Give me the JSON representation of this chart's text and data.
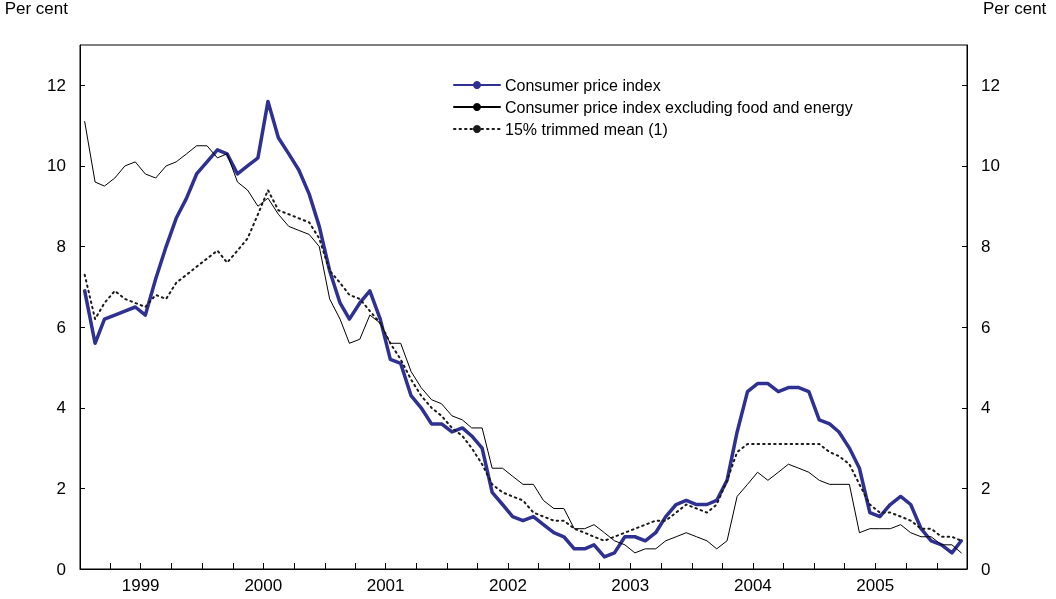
{
  "chart_data": {
    "type": "line",
    "ylabel": "Per cent",
    "y2label": "Per cent",
    "x": [
      "1999-01-15",
      "1999-02-15",
      "1999-03-15",
      "1999-04-15",
      "1999-05-15",
      "1999-06-15",
      "1999-07-15",
      "1999-08-15",
      "1999-09-15",
      "1999-10-15",
      "1999-11-15",
      "1999-12-15",
      "2000-01-15",
      "2000-02-15",
      "2000-03-15",
      "2000-04-15",
      "2000-05-15",
      "2000-06-15",
      "2000-07-15",
      "2000-08-15",
      "2000-09-15",
      "2000-10-15",
      "2000-11-15",
      "2000-12-15",
      "2001-01-15",
      "2001-02-15",
      "2001-03-15",
      "2001-04-15",
      "2001-05-15",
      "2001-06-15",
      "2001-07-15",
      "2001-08-15",
      "2001-09-15",
      "2001-10-15",
      "2001-11-15",
      "2001-12-15",
      "2002-01-15",
      "2002-02-15",
      "2002-03-15",
      "2002-04-15",
      "2002-05-15",
      "2002-06-15",
      "2002-07-15",
      "2002-08-15",
      "2002-09-15",
      "2002-10-15",
      "2002-11-15",
      "2002-12-15",
      "2003-01-15",
      "2003-02-15",
      "2003-03-15",
      "2003-04-15",
      "2003-05-15",
      "2003-06-15",
      "2003-07-15",
      "2003-08-15",
      "2003-09-15",
      "2003-10-15",
      "2003-11-15",
      "2003-12-15",
      "2004-01-15",
      "2004-02-15",
      "2004-03-15",
      "2004-04-15",
      "2004-05-15",
      "2004-06-15",
      "2004-07-15",
      "2004-08-15",
      "2004-09-15",
      "2004-10-15",
      "2004-11-15",
      "2004-12-15",
      "2005-01-15",
      "2005-02-15",
      "2005-03-15",
      "2005-04-15",
      "2005-05-15",
      "2005-06-15",
      "2005-07-15",
      "2005-08-15",
      "2005-09-15",
      "2005-10-15",
      "2005-11-15",
      "2005-12-15",
      "2006-01-15",
      "2006-02-15",
      "2006-03-15"
    ],
    "series": [
      {
        "name": "Consumer price index",
        "color": "#2e3192",
        "line_style": "solid",
        "values": [
          6.9,
          5.6,
          6.2,
          6.3,
          6.4,
          6.5,
          6.3,
          7.2,
          8.0,
          8.7,
          9.2,
          9.8,
          10.1,
          10.4,
          10.3,
          9.8,
          10.0,
          10.2,
          11.6,
          10.7,
          10.3,
          9.9,
          9.3,
          8.5,
          7.4,
          6.6,
          6.2,
          6.6,
          6.9,
          6.2,
          5.2,
          5.1,
          4.3,
          4.0,
          3.6,
          3.6,
          3.4,
          3.5,
          3.3,
          3.0,
          1.9,
          1.6,
          1.3,
          1.2,
          1.3,
          1.1,
          0.9,
          0.8,
          0.5,
          0.5,
          0.6,
          0.3,
          0.4,
          0.8,
          0.8,
          0.7,
          0.9,
          1.3,
          1.6,
          1.7,
          1.6,
          1.6,
          1.7,
          2.2,
          3.4,
          4.4,
          4.6,
          4.6,
          4.4,
          4.5,
          4.5,
          4.4,
          3.7,
          3.6,
          3.4,
          3.0,
          2.5,
          1.4,
          1.3,
          1.6,
          1.8,
          1.6,
          1.0,
          0.7,
          0.6,
          0.4,
          0.7
        ]
      },
      {
        "name": "Consumer price index excluding food and energy",
        "color": "#000000",
        "line_style": "solid",
        "values": [
          11.1,
          9.6,
          9.5,
          9.7,
          10.0,
          10.1,
          9.8,
          9.7,
          10.0,
          10.1,
          10.3,
          10.5,
          10.5,
          10.2,
          10.3,
          9.6,
          9.4,
          9.0,
          9.2,
          8.8,
          8.5,
          8.4,
          8.3,
          8.0,
          6.7,
          6.2,
          5.6,
          5.7,
          6.3,
          6.1,
          5.6,
          5.6,
          4.9,
          4.5,
          4.2,
          4.1,
          3.8,
          3.7,
          3.5,
          3.5,
          2.5,
          2.5,
          2.3,
          2.1,
          2.1,
          1.7,
          1.5,
          1.5,
          1.0,
          1.0,
          1.1,
          0.9,
          0.7,
          0.6,
          0.4,
          0.5,
          0.5,
          0.7,
          0.8,
          0.9,
          0.8,
          0.7,
          0.5,
          0.7,
          1.8,
          2.1,
          2.4,
          2.2,
          2.4,
          2.6,
          2.5,
          2.4,
          2.2,
          2.1,
          2.1,
          2.1,
          0.9,
          1.0,
          1.0,
          1.0,
          1.1,
          0.9,
          0.8,
          0.8,
          0.6,
          0.6,
          0.4
        ]
      },
      {
        "name": "15% trimmed mean (1)",
        "color": "#1a1a1a",
        "line_style": "dotted",
        "values": [
          7.3,
          6.2,
          6.6,
          6.9,
          6.7,
          6.6,
          6.5,
          6.8,
          6.7,
          7.1,
          7.3,
          7.5,
          7.7,
          7.9,
          7.6,
          7.9,
          8.2,
          8.8,
          9.4,
          8.9,
          8.8,
          8.7,
          8.6,
          8.2,
          7.4,
          7.1,
          6.8,
          6.7,
          6.4,
          6.1,
          5.6,
          5.2,
          4.7,
          4.3,
          4.0,
          3.8,
          3.5,
          3.3,
          3.0,
          2.6,
          2.1,
          1.9,
          1.8,
          1.7,
          1.4,
          1.3,
          1.2,
          1.2,
          1.0,
          0.9,
          0.8,
          0.7,
          0.8,
          0.9,
          1.0,
          1.1,
          1.2,
          1.2,
          1.4,
          1.6,
          1.5,
          1.4,
          1.6,
          2.2,
          2.9,
          3.1,
          3.1,
          3.1,
          3.1,
          3.1,
          3.1,
          3.1,
          3.1,
          2.9,
          2.8,
          2.6,
          2.1,
          1.6,
          1.4,
          1.4,
          1.3,
          1.2,
          1.0,
          1.0,
          0.8,
          0.8,
          0.7
        ]
      }
    ],
    "ylim": [
      0,
      13
    ],
    "yticks": [
      0,
      2,
      4,
      6,
      8,
      10,
      12
    ],
    "y2lim": [
      0,
      13
    ],
    "y2ticks": [
      0,
      2,
      4,
      6,
      8,
      10,
      12
    ],
    "xlim": [
      "1999-01-01",
      "2006-04-01"
    ],
    "xticks": [
      {
        "value": "1999-01-01",
        "label": null
      },
      {
        "value": "1999-04-01",
        "label": null
      },
      {
        "value": "1999-07-01",
        "label": "1999"
      },
      {
        "value": "1999-10-01",
        "label": null
      },
      {
        "value": "2000-01-01",
        "label": null
      },
      {
        "value": "2000-04-01",
        "label": null
      },
      {
        "value": "2000-07-01",
        "label": "2000"
      },
      {
        "value": "2000-10-01",
        "label": null
      },
      {
        "value": "2001-01-01",
        "label": null
      },
      {
        "value": "2001-04-01",
        "label": null
      },
      {
        "value": "2001-07-01",
        "label": "2001"
      },
      {
        "value": "2001-10-01",
        "label": null
      },
      {
        "value": "2002-01-01",
        "label": null
      },
      {
        "value": "2002-04-01",
        "label": null
      },
      {
        "value": "2002-07-01",
        "label": "2002"
      },
      {
        "value": "2002-10-01",
        "label": null
      },
      {
        "value": "2003-01-01",
        "label": null
      },
      {
        "value": "2003-04-01",
        "label": null
      },
      {
        "value": "2003-07-01",
        "label": "2003"
      },
      {
        "value": "2003-10-01",
        "label": null
      },
      {
        "value": "2004-01-01",
        "label": null
      },
      {
        "value": "2004-04-01",
        "label": null
      },
      {
        "value": "2004-07-01",
        "label": "2004"
      },
      {
        "value": "2004-10-01",
        "label": null
      },
      {
        "value": "2005-01-01",
        "label": null
      },
      {
        "value": "2005-04-01",
        "label": null
      },
      {
        "value": "2005-07-01",
        "label": "2005"
      },
      {
        "value": "2005-10-01",
        "label": null
      },
      {
        "value": "2006-01-01",
        "label": null
      }
    ],
    "grid": false,
    "legend": "top right",
    "marker": "none"
  }
}
